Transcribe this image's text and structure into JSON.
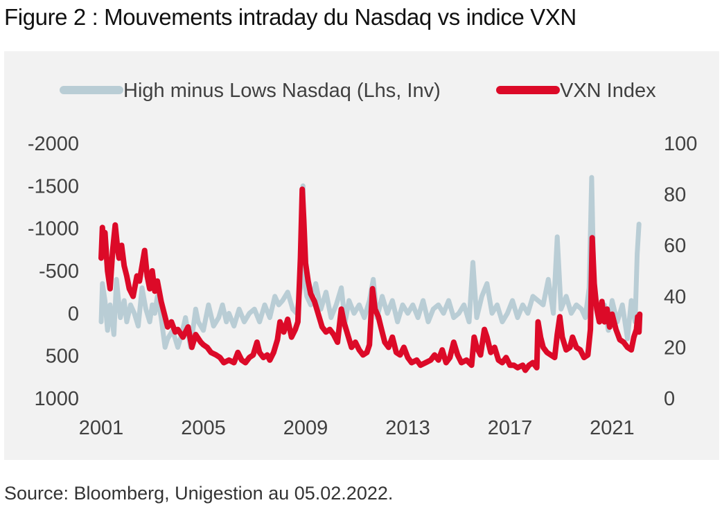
{
  "figure_title": "Figure 2 : Mouvements intraday du Nasdaq vs indice VXN",
  "source_note": "Source: Bloomberg, Unigestion au 05.02.2022.",
  "colors": {
    "hml": "#b9cdd5",
    "vxn": "#dc0a28",
    "panel_bg": "#f2f2f2",
    "text": "#404040"
  },
  "chart_data": {
    "type": "line",
    "title": "",
    "xlabel": "",
    "legend_position": "top",
    "grid": false,
    "x_ticks": [
      2001,
      2005,
      2009,
      2013,
      2017,
      2021
    ],
    "x_tick_labels": [
      "2001",
      "2005",
      "2009",
      "2013",
      "2017",
      "2021"
    ],
    "xlim": [
      2001,
      2022.1
    ],
    "y_left": {
      "label": "",
      "inverted": true,
      "lim": [
        -2000,
        1000
      ],
      "ticks": [
        -2000,
        -1500,
        -1000,
        -500,
        0,
        500,
        1000
      ],
      "tick_labels": [
        "-2000",
        "-1500",
        "-1000",
        "-500",
        "0",
        "500",
        "1000"
      ]
    },
    "y_right": {
      "label": "",
      "lim": [
        0,
        100
      ],
      "ticks": [
        0,
        20,
        40,
        60,
        80,
        100
      ],
      "tick_labels": [
        "0",
        "20",
        "40",
        "60",
        "80",
        "100"
      ]
    },
    "series": [
      {
        "name": "High minus Lows Nasdaq (Lhs, Inv)",
        "axis": "left",
        "color": "#b9cdd5",
        "points": [
          [
            2001.0,
            100
          ],
          [
            2001.05,
            -350
          ],
          [
            2001.15,
            -150
          ],
          [
            2001.25,
            200
          ],
          [
            2001.35,
            -100
          ],
          [
            2001.5,
            250
          ],
          [
            2001.6,
            -400
          ],
          [
            2001.75,
            50
          ],
          [
            2001.9,
            -150
          ],
          [
            2002.0,
            100
          ],
          [
            2002.15,
            -100
          ],
          [
            2002.3,
            0
          ],
          [
            2002.45,
            150
          ],
          [
            2002.6,
            -300
          ],
          [
            2002.75,
            -50
          ],
          [
            2002.9,
            100
          ],
          [
            2003.0,
            -100
          ],
          [
            2003.1,
            0
          ],
          [
            2003.2,
            -200
          ],
          [
            2003.35,
            50
          ],
          [
            2003.5,
            400
          ],
          [
            2003.6,
            300
          ],
          [
            2003.8,
            200
          ],
          [
            2004.0,
            400
          ],
          [
            2004.15,
            250
          ],
          [
            2004.3,
            50
          ],
          [
            2004.5,
            400
          ],
          [
            2004.7,
            -50
          ],
          [
            2004.8,
            100
          ],
          [
            2005.0,
            200
          ],
          [
            2005.2,
            -100
          ],
          [
            2005.4,
            150
          ],
          [
            2005.6,
            50
          ],
          [
            2005.75,
            -100
          ],
          [
            2005.9,
            100
          ],
          [
            2006.0,
            0
          ],
          [
            2006.2,
            150
          ],
          [
            2006.4,
            -50
          ],
          [
            2006.6,
            100
          ],
          [
            2006.8,
            0
          ],
          [
            2007.0,
            -50
          ],
          [
            2007.2,
            100
          ],
          [
            2007.4,
            -100
          ],
          [
            2007.6,
            50
          ],
          [
            2007.8,
            -200
          ],
          [
            2007.95,
            -100
          ],
          [
            2008.1,
            -150
          ],
          [
            2008.3,
            -250
          ],
          [
            2008.5,
            -50
          ],
          [
            2008.65,
            0
          ],
          [
            2008.8,
            -300
          ],
          [
            2008.9,
            -1500
          ],
          [
            2008.95,
            -400
          ],
          [
            2009.05,
            -200
          ],
          [
            2009.2,
            -100
          ],
          [
            2009.4,
            -350
          ],
          [
            2009.6,
            -50
          ],
          [
            2009.8,
            -250
          ],
          [
            2010.0,
            50
          ],
          [
            2010.2,
            -100
          ],
          [
            2010.4,
            -300
          ],
          [
            2010.55,
            100
          ],
          [
            2010.7,
            -150
          ],
          [
            2010.9,
            0
          ],
          [
            2011.1,
            -100
          ],
          [
            2011.3,
            50
          ],
          [
            2011.5,
            -150
          ],
          [
            2011.65,
            -400
          ],
          [
            2011.8,
            50
          ],
          [
            2012.0,
            -200
          ],
          [
            2012.2,
            0
          ],
          [
            2012.4,
            -150
          ],
          [
            2012.6,
            100
          ],
          [
            2012.8,
            -100
          ],
          [
            2013.0,
            0
          ],
          [
            2013.2,
            -100
          ],
          [
            2013.4,
            50
          ],
          [
            2013.6,
            -150
          ],
          [
            2013.8,
            100
          ],
          [
            2014.0,
            -50
          ],
          [
            2014.2,
            -100
          ],
          [
            2014.4,
            0
          ],
          [
            2014.6,
            -150
          ],
          [
            2014.8,
            50
          ],
          [
            2015.0,
            0
          ],
          [
            2015.2,
            -100
          ],
          [
            2015.4,
            100
          ],
          [
            2015.55,
            -600
          ],
          [
            2015.7,
            50
          ],
          [
            2015.9,
            -200
          ],
          [
            2016.1,
            -350
          ],
          [
            2016.3,
            0
          ],
          [
            2016.5,
            -100
          ],
          [
            2016.7,
            100
          ],
          [
            2016.9,
            0
          ],
          [
            2017.1,
            -150
          ],
          [
            2017.3,
            50
          ],
          [
            2017.5,
            -100
          ],
          [
            2017.7,
            0
          ],
          [
            2017.9,
            -200
          ],
          [
            2018.1,
            -150
          ],
          [
            2018.3,
            -100
          ],
          [
            2018.5,
            -400
          ],
          [
            2018.7,
            0
          ],
          [
            2018.85,
            -900
          ],
          [
            2019.0,
            -50
          ],
          [
            2019.2,
            -200
          ],
          [
            2019.4,
            0
          ],
          [
            2019.6,
            -100
          ],
          [
            2019.8,
            -50
          ],
          [
            2019.95,
            50
          ],
          [
            2020.1,
            -300
          ],
          [
            2020.2,
            -1600
          ],
          [
            2020.3,
            -150
          ],
          [
            2020.5,
            0
          ],
          [
            2020.7,
            -100
          ],
          [
            2020.85,
            200
          ],
          [
            2021.0,
            -150
          ],
          [
            2021.2,
            100
          ],
          [
            2021.4,
            -100
          ],
          [
            2021.6,
            300
          ],
          [
            2021.75,
            -150
          ],
          [
            2021.9,
            100
          ],
          [
            2021.98,
            -700
          ],
          [
            2022.05,
            -1050
          ]
        ]
      },
      {
        "name": "VXN Index",
        "axis": "right",
        "color": "#dc0a28",
        "points": [
          [
            2001.0,
            55
          ],
          [
            2001.05,
            67
          ],
          [
            2001.1,
            58
          ],
          [
            2001.15,
            65
          ],
          [
            2001.25,
            50
          ],
          [
            2001.35,
            43
          ],
          [
            2001.45,
            58
          ],
          [
            2001.55,
            68
          ],
          [
            2001.65,
            58
          ],
          [
            2001.7,
            55
          ],
          [
            2001.8,
            60
          ],
          [
            2001.9,
            52
          ],
          [
            2002.0,
            48
          ],
          [
            2002.1,
            43
          ],
          [
            2002.25,
            40
          ],
          [
            2002.4,
            48
          ],
          [
            2002.5,
            46
          ],
          [
            2002.6,
            52
          ],
          [
            2002.7,
            58
          ],
          [
            2002.8,
            48
          ],
          [
            2002.9,
            43
          ],
          [
            2003.0,
            50
          ],
          [
            2003.1,
            42
          ],
          [
            2003.2,
            46
          ],
          [
            2003.35,
            38
          ],
          [
            2003.5,
            32
          ],
          [
            2003.6,
            28
          ],
          [
            2003.75,
            30
          ],
          [
            2003.9,
            26
          ],
          [
            2004.0,
            27
          ],
          [
            2004.2,
            24
          ],
          [
            2004.4,
            28
          ],
          [
            2004.55,
            20
          ],
          [
            2004.7,
            25
          ],
          [
            2004.9,
            22
          ],
          [
            2005.0,
            21
          ],
          [
            2005.15,
            20
          ],
          [
            2005.3,
            18
          ],
          [
            2005.5,
            17
          ],
          [
            2005.65,
            16
          ],
          [
            2005.8,
            14
          ],
          [
            2006.0,
            15
          ],
          [
            2006.2,
            14
          ],
          [
            2006.35,
            18
          ],
          [
            2006.5,
            15
          ],
          [
            2006.65,
            14
          ],
          [
            2006.8,
            16
          ],
          [
            2006.95,
            17
          ],
          [
            2007.1,
            22
          ],
          [
            2007.2,
            18
          ],
          [
            2007.35,
            16
          ],
          [
            2007.5,
            17
          ],
          [
            2007.6,
            15
          ],
          [
            2007.75,
            18
          ],
          [
            2007.9,
            23
          ],
          [
            2008.0,
            30
          ],
          [
            2008.15,
            26
          ],
          [
            2008.3,
            31
          ],
          [
            2008.45,
            24
          ],
          [
            2008.6,
            27
          ],
          [
            2008.7,
            30
          ],
          [
            2008.8,
            55
          ],
          [
            2008.87,
            82
          ],
          [
            2008.93,
            70
          ],
          [
            2009.0,
            53
          ],
          [
            2009.1,
            46
          ],
          [
            2009.2,
            41
          ],
          [
            2009.35,
            38
          ],
          [
            2009.5,
            33
          ],
          [
            2009.65,
            28
          ],
          [
            2009.8,
            26
          ],
          [
            2009.95,
            27
          ],
          [
            2010.1,
            25
          ],
          [
            2010.25,
            22
          ],
          [
            2010.4,
            35
          ],
          [
            2010.5,
            30
          ],
          [
            2010.65,
            25
          ],
          [
            2010.8,
            20
          ],
          [
            2010.95,
            22
          ],
          [
            2011.1,
            19
          ],
          [
            2011.25,
            17
          ],
          [
            2011.4,
            18
          ],
          [
            2011.5,
            21
          ],
          [
            2011.62,
            43
          ],
          [
            2011.72,
            35
          ],
          [
            2011.85,
            32
          ],
          [
            2011.95,
            28
          ],
          [
            2012.1,
            22
          ],
          [
            2012.25,
            20
          ],
          [
            2012.4,
            24
          ],
          [
            2012.55,
            18
          ],
          [
            2012.7,
            17
          ],
          [
            2012.85,
            20
          ],
          [
            2013.0,
            16
          ],
          [
            2013.15,
            14
          ],
          [
            2013.35,
            15
          ],
          [
            2013.5,
            13
          ],
          [
            2013.7,
            14
          ],
          [
            2013.9,
            15
          ],
          [
            2014.05,
            17
          ],
          [
            2014.2,
            15
          ],
          [
            2014.35,
            19
          ],
          [
            2014.5,
            14
          ],
          [
            2014.65,
            16
          ],
          [
            2014.8,
            22
          ],
          [
            2014.95,
            17
          ],
          [
            2015.1,
            14
          ],
          [
            2015.3,
            15
          ],
          [
            2015.5,
            13
          ],
          [
            2015.6,
            24
          ],
          [
            2015.7,
            20
          ],
          [
            2015.85,
            17
          ],
          [
            2016.0,
            27
          ],
          [
            2016.1,
            24
          ],
          [
            2016.25,
            18
          ],
          [
            2016.4,
            20
          ],
          [
            2016.55,
            15
          ],
          [
            2016.7,
            14
          ],
          [
            2016.85,
            16
          ],
          [
            2017.0,
            13
          ],
          [
            2017.15,
            13
          ],
          [
            2017.3,
            12
          ],
          [
            2017.5,
            13
          ],
          [
            2017.6,
            11
          ],
          [
            2017.75,
            13
          ],
          [
            2017.9,
            14
          ],
          [
            2018.05,
            12
          ],
          [
            2018.1,
            30
          ],
          [
            2018.2,
            24
          ],
          [
            2018.3,
            20
          ],
          [
            2018.45,
            18
          ],
          [
            2018.6,
            17
          ],
          [
            2018.75,
            16
          ],
          [
            2018.85,
            25
          ],
          [
            2018.95,
            32
          ],
          [
            2019.05,
            24
          ],
          [
            2019.2,
            19
          ],
          [
            2019.35,
            20
          ],
          [
            2019.45,
            24
          ],
          [
            2019.6,
            20
          ],
          [
            2019.75,
            19
          ],
          [
            2019.9,
            16
          ],
          [
            2020.05,
            17
          ],
          [
            2020.15,
            27
          ],
          [
            2020.22,
            63
          ],
          [
            2020.3,
            45
          ],
          [
            2020.4,
            35
          ],
          [
            2020.5,
            30
          ],
          [
            2020.6,
            38
          ],
          [
            2020.7,
            30
          ],
          [
            2020.8,
            35
          ],
          [
            2020.9,
            28
          ],
          [
            2021.0,
            33
          ],
          [
            2021.15,
            27
          ],
          [
            2021.3,
            23
          ],
          [
            2021.45,
            22
          ],
          [
            2021.6,
            20
          ],
          [
            2021.75,
            19
          ],
          [
            2021.85,
            24
          ],
          [
            2021.95,
            27
          ],
          [
            2022.0,
            32
          ],
          [
            2022.05,
            26
          ],
          [
            2022.08,
            33
          ]
        ]
      }
    ]
  }
}
